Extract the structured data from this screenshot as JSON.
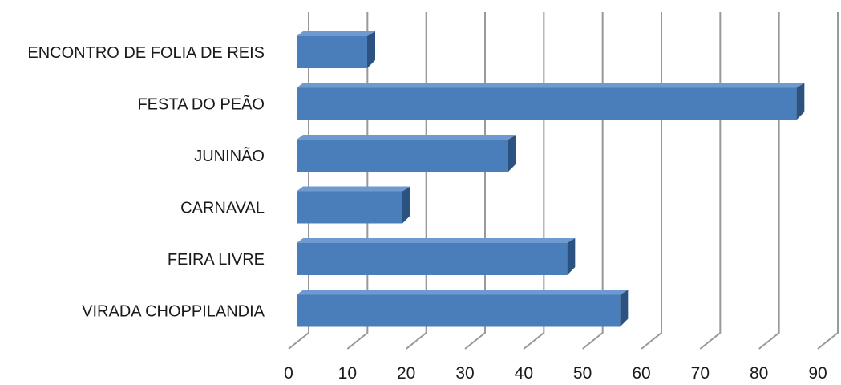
{
  "chart_data": {
    "type": "bar",
    "orientation": "horizontal",
    "style": "3d",
    "categories": [
      "ENCONTRO DE FOLIA DE REIS",
      "FESTA DO PEÃO",
      "JUNINÃO",
      "CARNAVAL",
      "FEIRA LIVRE",
      "VIRADA CHOPPILANDIA"
    ],
    "values": [
      12,
      85,
      36,
      18,
      46,
      55
    ],
    "xlim": [
      0,
      90
    ],
    "ticks": [
      "0",
      "10",
      "20",
      "30",
      "40",
      "50",
      "60",
      "70",
      "80",
      "90"
    ],
    "grid": true,
    "legend": "none",
    "colors": {
      "bar_front": "#4a7ebb",
      "bar_top": "#6f9ad0",
      "bar_side": "#2c5282",
      "grid": "#999999"
    }
  }
}
